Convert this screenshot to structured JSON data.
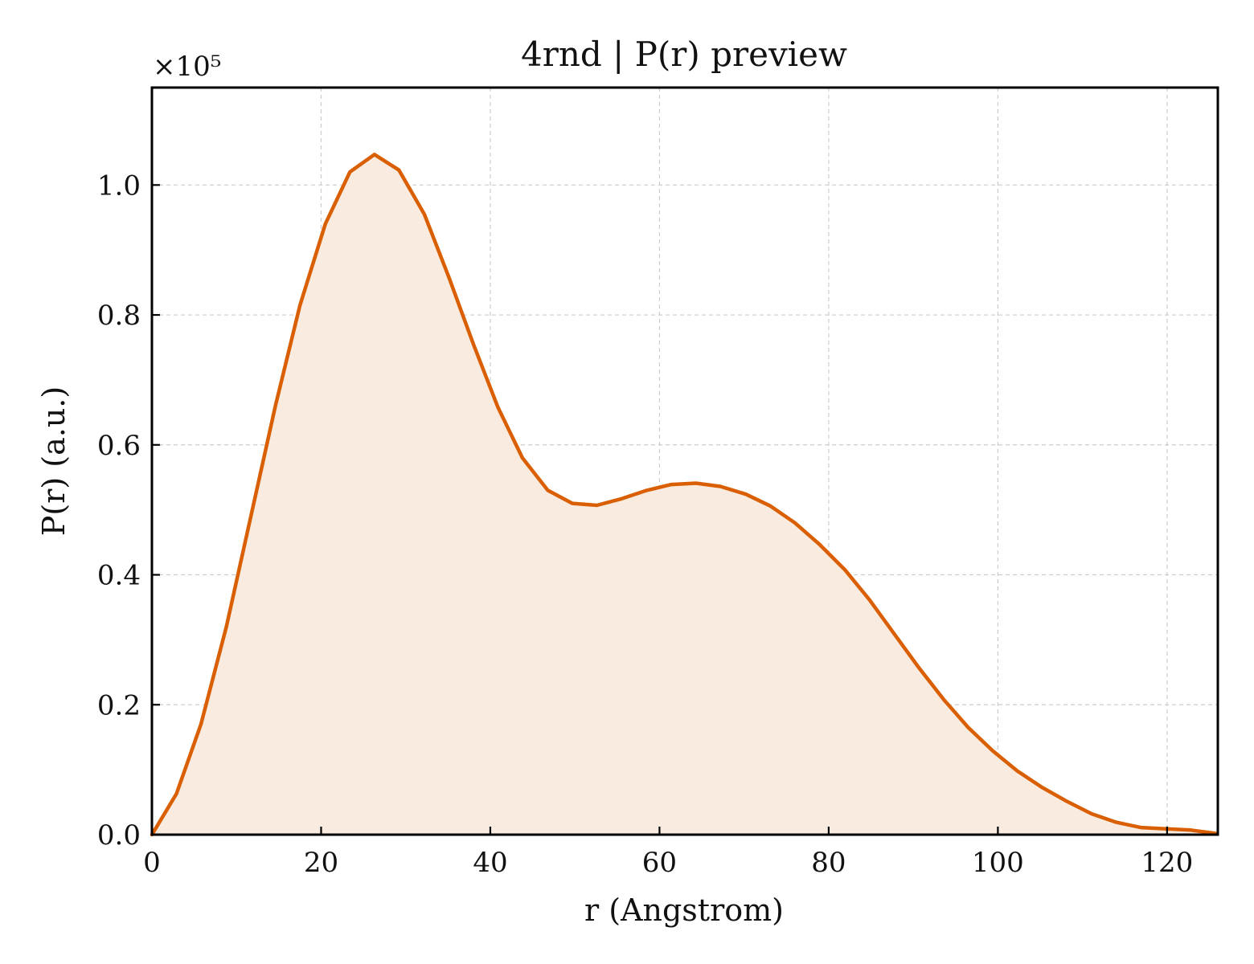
{
  "chart_data": {
    "type": "area",
    "title": "4rnd | P(r) preview",
    "xlabel": "r (Angstrom)",
    "ylabel": "P(r) (a.u.)",
    "y_multiplier_label": "×10⁵",
    "xlim": [
      0,
      126
    ],
    "ylim": [
      0,
      1.15
    ],
    "x_ticks": [
      0,
      20,
      40,
      60,
      80,
      100,
      120
    ],
    "y_ticks": [
      0.0,
      0.2,
      0.4,
      0.6,
      0.8,
      1.0
    ],
    "x_tick_labels": [
      "0",
      "20",
      "40",
      "60",
      "80",
      "100",
      "120"
    ],
    "y_tick_labels": [
      "0.0",
      "0.2",
      "0.4",
      "0.6",
      "0.8",
      "1.0"
    ],
    "grid": true,
    "line_color": "#d95f02",
    "fill_color": "#faebe0",
    "series": [
      {
        "x": [
          0,
          2.9,
          5.8,
          8.8,
          11.7,
          14.6,
          17.5,
          20.5,
          23.4,
          26.3,
          29.2,
          32.2,
          35.1,
          38.0,
          40.9,
          43.8,
          46.8,
          49.7,
          52.6,
          55.5,
          58.5,
          61.4,
          64.3,
          67.2,
          70.2,
          73.1,
          76.0,
          78.9,
          81.9,
          84.8,
          87.7,
          90.6,
          93.6,
          96.5,
          99.4,
          102.3,
          105.2,
          108.2,
          111.1,
          114.0,
          116.9,
          119.9,
          122.8,
          125.7
        ],
        "values": [
          0.0,
          0.063,
          0.17,
          0.32,
          0.49,
          0.66,
          0.815,
          0.94,
          1.02,
          1.047,
          1.023,
          0.955,
          0.858,
          0.755,
          0.658,
          0.58,
          0.53,
          0.51,
          0.507,
          0.517,
          0.53,
          0.539,
          0.541,
          0.536,
          0.524,
          0.506,
          0.48,
          0.447,
          0.408,
          0.362,
          0.31,
          0.258,
          0.208,
          0.165,
          0.129,
          0.098,
          0.073,
          0.051,
          0.032,
          0.019,
          0.011,
          0.009,
          0.007,
          0.002
        ]
      }
    ]
  }
}
